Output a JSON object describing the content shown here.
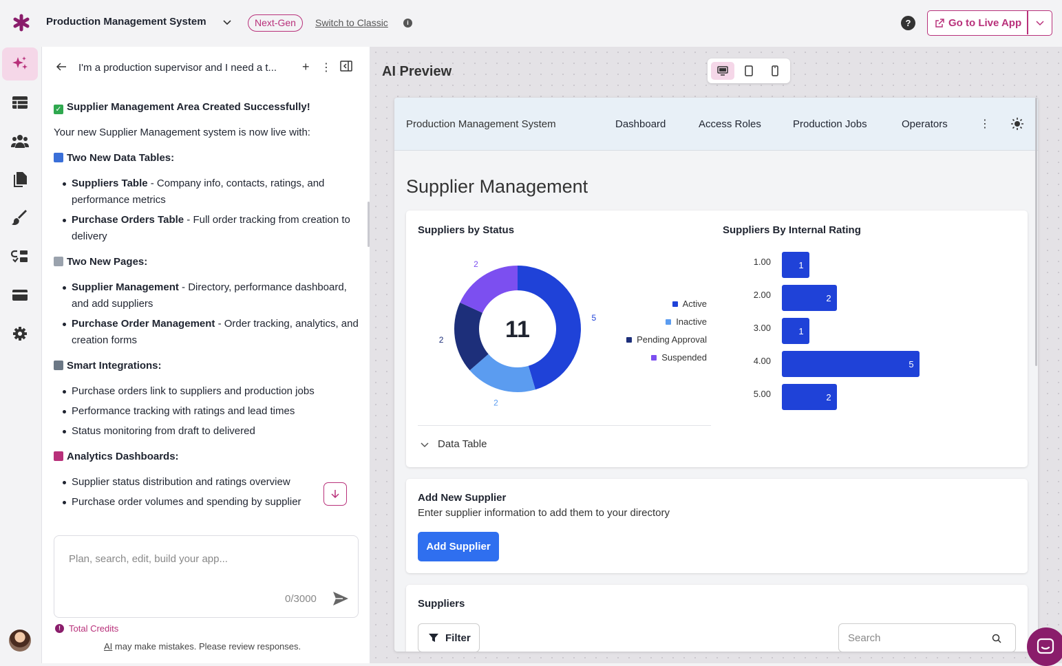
{
  "topbar": {
    "app_title": "Production Management System",
    "next_gen": "Next-Gen",
    "switch_classic": "Switch to Classic",
    "help": "?",
    "go_live": "Go to Live App"
  },
  "chat": {
    "title": "I'm a production supervisor and I need a t...",
    "heading": "Supplier Management Area Created Successfully!",
    "intro": "Your new Supplier Management system is now live with:",
    "sections": [
      {
        "title": "Two New Data Tables:",
        "items": [
          {
            "bold": "Suppliers Table",
            "text": " - Company info, contacts, ratings, and performance metrics"
          },
          {
            "bold": "Purchase Orders Table",
            "text": " - Full order tracking from creation to delivery"
          }
        ]
      },
      {
        "title": "Two New Pages:",
        "items": [
          {
            "bold": "Supplier Management",
            "text": " - Directory, performance dashboard, and add suppliers"
          },
          {
            "bold": "Purchase Order Management",
            "text": " - Order tracking, analytics, and creation forms"
          }
        ]
      },
      {
        "title": "Smart Integrations:",
        "items": [
          {
            "bold": "",
            "text": "Purchase orders link to suppliers and production jobs"
          },
          {
            "bold": "",
            "text": "Performance tracking with ratings and lead times"
          },
          {
            "bold": "",
            "text": "Status monitoring from draft to delivered"
          }
        ]
      },
      {
        "title": "Analytics Dashboards:",
        "items": [
          {
            "bold": "",
            "text": "Supplier status distribution and ratings overview"
          },
          {
            "bold": "",
            "text": "Purchase order volumes and spending by supplier"
          }
        ]
      }
    ],
    "composer_placeholder": "Plan, search, edit, build your app...",
    "char_count": "0/3000",
    "credits": "Total Credits",
    "disclaimer_ai": "AI",
    "disclaimer_rest": " may make mistakes. Please review responses."
  },
  "preview": {
    "label": "AI Preview",
    "nav": {
      "brand": "Production Management System",
      "links": [
        "Dashboard",
        "Access Roles",
        "Production Jobs",
        "Operators"
      ]
    },
    "page_title": "Supplier Management",
    "status_card_title": "Suppliers by Status",
    "rating_card_title": "Suppliers By Internal Rating",
    "donut_total": "11",
    "data_table": "Data Table",
    "add_card": {
      "title": "Add New Supplier",
      "desc": "Enter supplier information to add them to your directory",
      "button": "Add Supplier"
    },
    "suppliers_card": {
      "title": "Suppliers",
      "filter": "Filter",
      "search_placeholder": "Search"
    }
  },
  "chart_data": [
    {
      "type": "pie",
      "title": "Suppliers by Status",
      "categories": [
        "Active",
        "Inactive",
        "Pending Approval",
        "Suspended"
      ],
      "values": [
        5,
        2,
        2,
        2
      ],
      "colors": [
        "#1f42d8",
        "#5b9cf0",
        "#1d2f7a",
        "#7c4ff0"
      ],
      "legend": "right"
    },
    {
      "type": "bar",
      "title": "Suppliers By Internal Rating",
      "categories": [
        "1.00",
        "2.00",
        "3.00",
        "4.00",
        "5.00"
      ],
      "values": [
        1,
        2,
        1,
        5,
        2
      ],
      "color": "#1f42d8",
      "orientation": "horizontal"
    }
  ]
}
